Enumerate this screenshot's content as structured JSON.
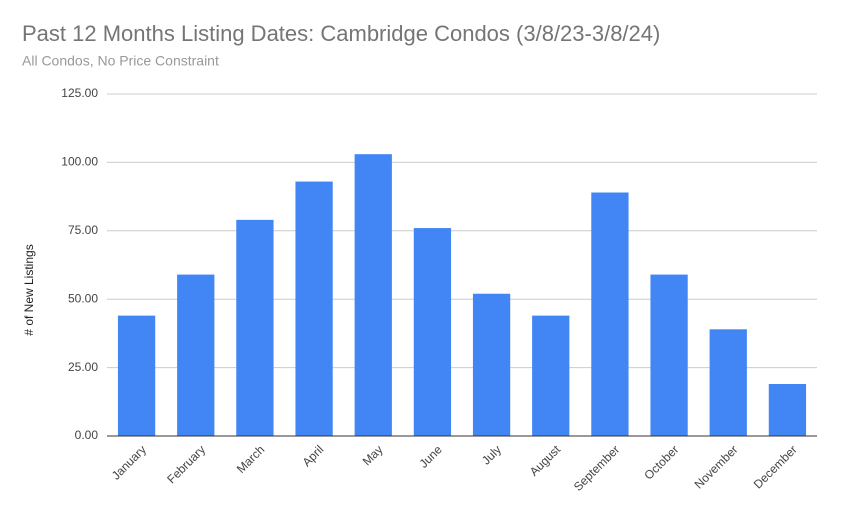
{
  "chart_data": {
    "type": "bar",
    "title": "Past 12 Months Listing Dates: Cambridge Condos (3/8/23-3/8/24)",
    "subtitle": "All Condos, No Price Constraint",
    "y_label": "# of New Listings",
    "categories": [
      "January",
      "February",
      "March",
      "April",
      "May",
      "June",
      "July",
      "August",
      "September",
      "October",
      "November",
      "December"
    ],
    "values": [
      44,
      59,
      79,
      93,
      103,
      76,
      52,
      44,
      89,
      59,
      39,
      19
    ],
    "color": "#4285f4",
    "ylim": [
      0,
      125
    ],
    "yticks": [
      {
        "value": 0,
        "label": "0.00"
      },
      {
        "value": 25,
        "label": "25.00"
      },
      {
        "value": 50,
        "label": "50.00"
      },
      {
        "value": 75,
        "label": "75.00"
      },
      {
        "value": 100,
        "label": "100.00"
      },
      {
        "value": 125,
        "label": "125.00"
      }
    ],
    "grid": true
  }
}
